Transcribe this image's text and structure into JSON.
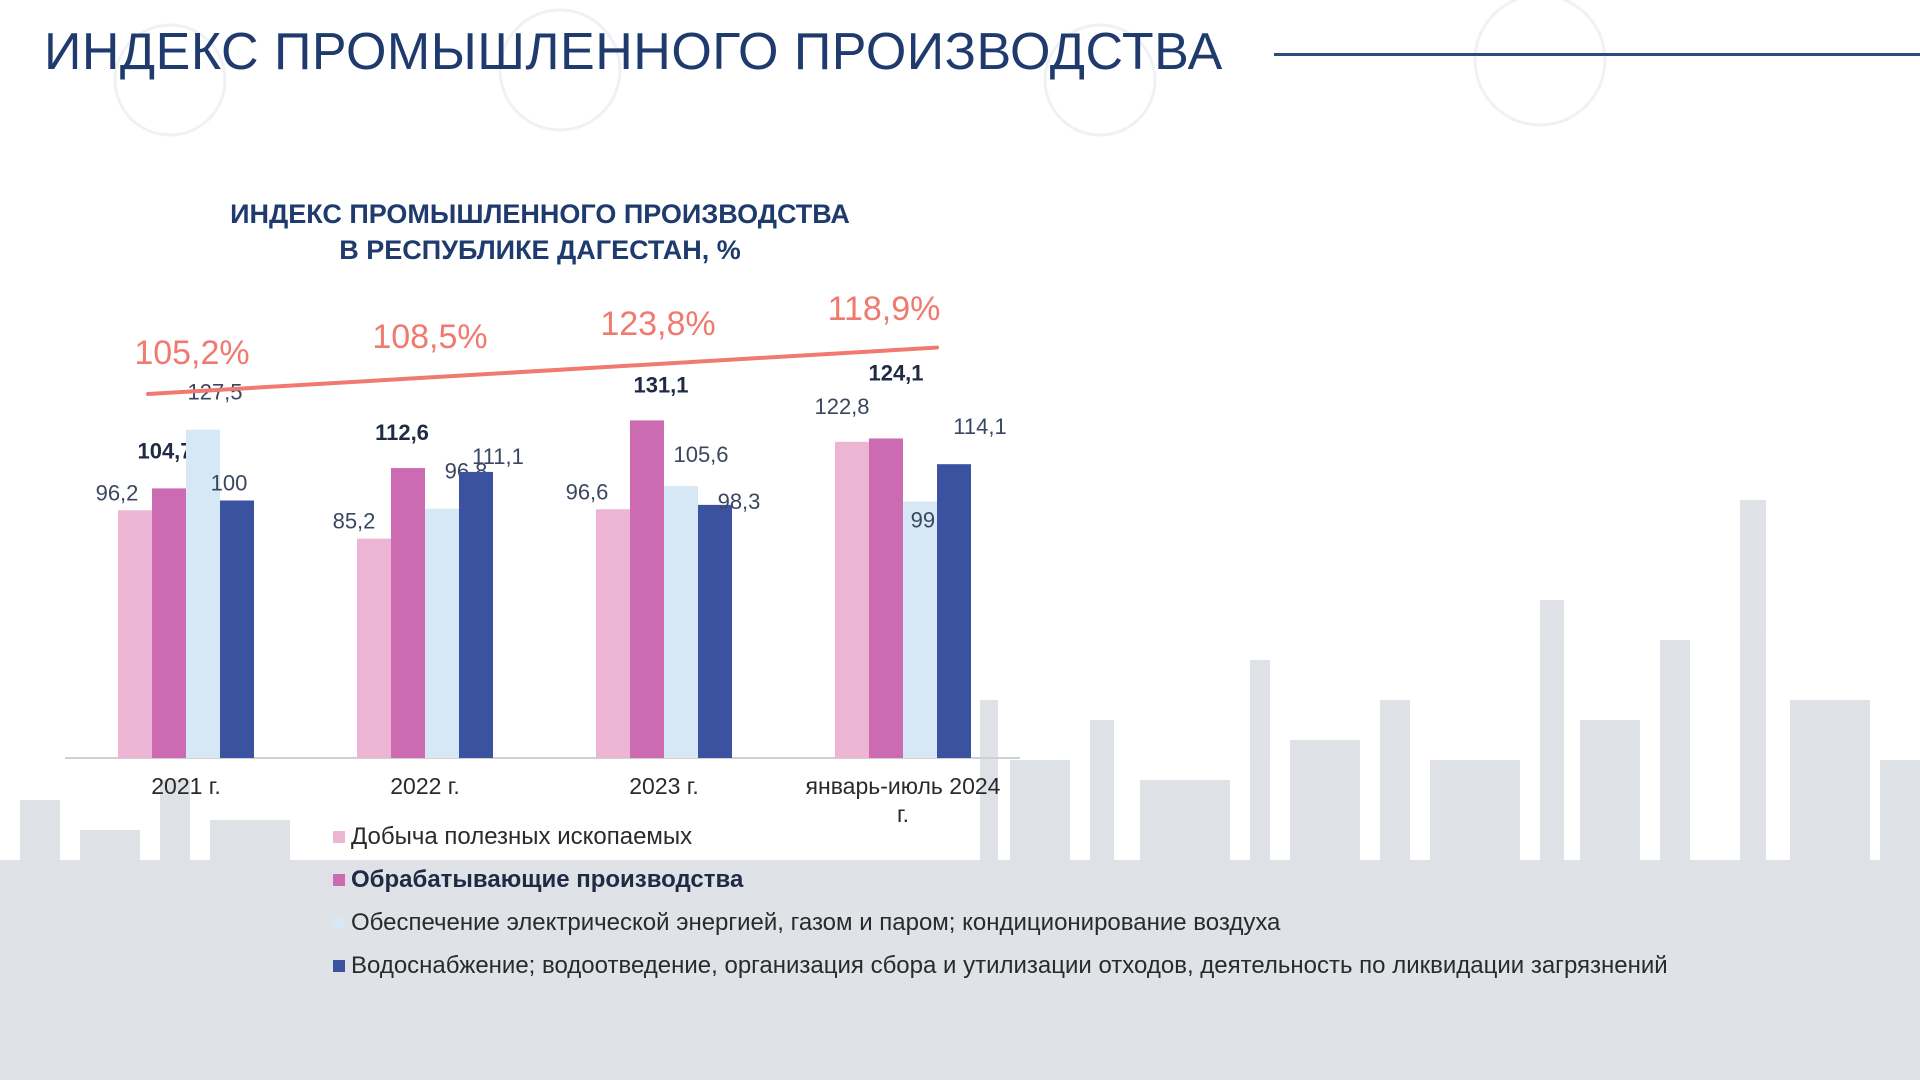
{
  "header": {
    "title": "ИНДЕКС ПРОМЫШЛЕННОГО ПРОИЗВОДСТВА"
  },
  "chart_data": {
    "type": "bar",
    "title_lines": [
      "ИНДЕКС ПРОМЫШЛЕННОГО ПРОИЗВОДСТВА",
      "В РЕСПУБЛИКЕ ДАГЕСТАН, %"
    ],
    "categories": [
      "2021 г.",
      "2022 г.",
      "2023 г.",
      "январь-июль 2024 г."
    ],
    "series": [
      {
        "name": "Добыча полезных ископаемых",
        "color": "#ebb5d3",
        "values": [
          96.2,
          85.2,
          96.6,
          122.8
        ],
        "labels": [
          "96,2",
          "85,2",
          "96,6",
          "122,8"
        ],
        "bold": false
      },
      {
        "name": "Обрабатывающие производства",
        "color": "#cc6bb2",
        "values": [
          104.7,
          112.6,
          131.1,
          124.1
        ],
        "labels": [
          "104,7",
          "112,6",
          "131,1",
          "124,1"
        ],
        "bold": true
      },
      {
        "name": "Обеспечение электрической энергией, газом и паром; кондиционирование воздуха",
        "color": "#d6e8f6",
        "values": [
          127.5,
          96.8,
          105.6,
          99.6
        ],
        "labels": [
          "127,5",
          "96,8",
          "105,6",
          "99,6"
        ],
        "bold": false
      },
      {
        "name": "Водоснабжение; водоотведение, организация сбора и утилизации отходов, деятельность по ликвидации загрязнений",
        "color": "#3a52a0",
        "values": [
          100,
          111.1,
          98.3,
          114.1
        ],
        "labels": [
          "100",
          "111,1",
          "98,3",
          "114,1"
        ],
        "bold": false
      }
    ],
    "overall_index": {
      "values": [
        105.2,
        108.5,
        123.8,
        118.9
      ],
      "labels": [
        "105,2%",
        "108,5%",
        "123,8%",
        "118,9%"
      ],
      "color": "#f07a70"
    },
    "ylim": [
      0,
      160
    ],
    "grid": false,
    "legend_position": "bottom"
  }
}
